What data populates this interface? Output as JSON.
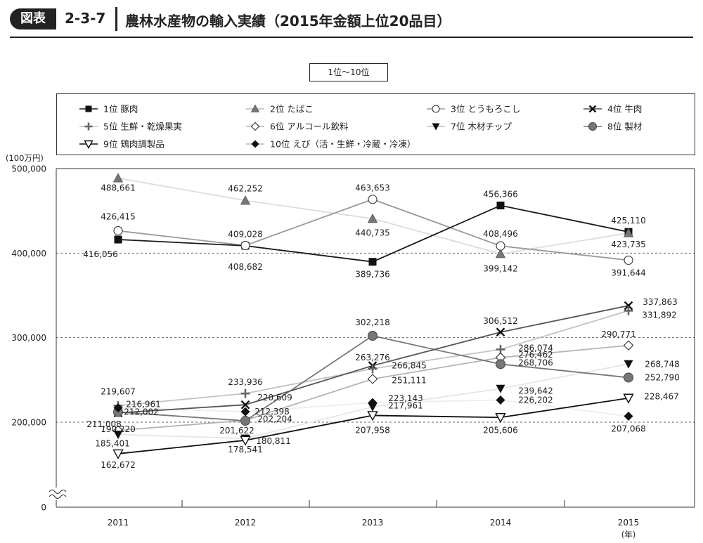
{
  "header": {
    "badge": "図表",
    "number": "2-3-7",
    "title": "農林水産物の輸入実績（2015年金額上位20品目）"
  },
  "subset_label": "1位～10位",
  "chart_data": {
    "type": "line",
    "title": "農林水産物の輸入実績（2015年金額上位20品目）",
    "subtitle": "1位～10位",
    "ylabel": "(100万円)",
    "xlabel_unit": "(年)",
    "x": [
      "2011",
      "2012",
      "2013",
      "2014",
      "2015"
    ],
    "y_ticks": [
      "500,000",
      "400,000",
      "300,000",
      "200,000",
      "0"
    ],
    "ylim": [
      0,
      500000
    ],
    "axis_break": true,
    "grid": "dashed horizontal at 200,000 / 300,000 / 400,000",
    "legend_position": "top, boxed",
    "series": [
      {
        "rank": "1位",
        "name": "豚肉",
        "marker": "square-filled",
        "color": "#1a1a1a",
        "values": [
          416056,
          408682,
          389736,
          456366,
          425110
        ],
        "labels": [
          "416,056",
          "408,682",
          "389,736",
          "456,366",
          "425,110"
        ]
      },
      {
        "rank": "2位",
        "name": "たばこ",
        "marker": "triangle-up-gray",
        "color": "#dcdcdc",
        "values": [
          488661,
          462252,
          440735,
          399142,
          423735
        ],
        "labels": [
          "488,661",
          "462,252",
          "440,735",
          "399,142",
          "423,735"
        ]
      },
      {
        "rank": "3位",
        "name": "とうもろこし",
        "marker": "circle-open",
        "color": "#9a9a9a",
        "values": [
          426415,
          409028,
          463653,
          408496,
          391644
        ],
        "labels": [
          "426,415",
          "409,028",
          "463,653",
          "408,496",
          "391,644"
        ]
      },
      {
        "rank": "4位",
        "name": "牛肉",
        "marker": "x",
        "color": "#555555",
        "values": [
          211008,
          220609,
          266845,
          306512,
          337863
        ],
        "labels": [
          "211,008",
          "220,609",
          "266,845",
          "306,512",
          "337,863"
        ]
      },
      {
        "rank": "5位",
        "name": "生鮮・乾燥果実",
        "marker": "plus",
        "color": "#c4c4c4",
        "values": [
          219607,
          233936,
          263276,
          286074,
          331892
        ],
        "labels": [
          "219,607",
          "233,936",
          "263,276",
          "286,074",
          "331,892"
        ]
      },
      {
        "rank": "6位",
        "name": "アルコール飲料",
        "marker": "diamond-open",
        "color": "#b4b4b4",
        "values": [
          190220,
          202204,
          251111,
          276462,
          290771
        ],
        "labels": [
          "190,220",
          "202,204",
          "251,111",
          "276,462",
          "290,771"
        ]
      },
      {
        "rank": "7位",
        "name": "木材チップ",
        "marker": "triangle-down-filled",
        "color": "#e6e6e6",
        "values": [
          185401,
          180811,
          217961,
          239642,
          268748
        ],
        "labels": [
          "185,401",
          "180,811",
          "217,961",
          "239,642",
          "268,748"
        ]
      },
      {
        "rank": "8位",
        "name": "製材",
        "marker": "circle-filled-gray",
        "color": "#777777",
        "values": [
          212002,
          201622,
          302218,
          268706,
          252790
        ],
        "labels": [
          "212,002",
          "201,622",
          "302,218",
          "268,706",
          "252,790"
        ]
      },
      {
        "rank": "9位",
        "name": "鶏肉調製品",
        "marker": "triangle-down-open",
        "color": "#111111",
        "values": [
          162672,
          178541,
          207958,
          205606,
          228467
        ],
        "labels": [
          "162,672",
          "178,541",
          "207,958",
          "205,606",
          "228,467"
        ]
      },
      {
        "rank": "10位",
        "name": "えび（活・生鮮・冷蔵・冷凍）",
        "marker": "diamond-filled",
        "color": "#eeeeee",
        "values": [
          216961,
          212398,
          223143,
          226202,
          207068
        ],
        "labels": [
          "216,961",
          "212,398",
          "223,143",
          "226,202",
          "207,068"
        ]
      }
    ]
  }
}
